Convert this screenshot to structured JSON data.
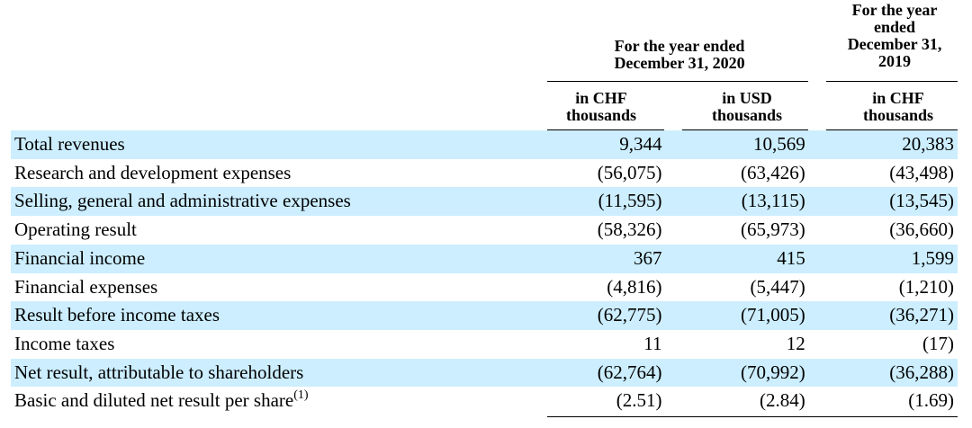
{
  "header": {
    "period_2020": "For the year ended December 31, 2020",
    "period_2020_line1": "For the year ended",
    "period_2020_line2": "December 31, 2020",
    "period_2019_lines": [
      "For the year",
      "ended",
      "December 31,",
      "2019"
    ],
    "columns": [
      {
        "line1": "in CHF",
        "line2": "thousands"
      },
      {
        "line1": "in USD",
        "line2": "thousands"
      },
      {
        "line1": "in CHF",
        "line2": "thousands"
      }
    ]
  },
  "rows": [
    {
      "label": "Total revenues",
      "chf_2020": "9,344",
      "usd_2020": "10,569",
      "chf_2019": "20,383",
      "shaded": true
    },
    {
      "label": "Research and development expenses",
      "chf_2020": "(56,075)",
      "usd_2020": "(63,426)",
      "chf_2019": "(43,498)",
      "shaded": false
    },
    {
      "label": "Selling, general and administrative expenses",
      "chf_2020": "(11,595)",
      "usd_2020": "(13,115)",
      "chf_2019": "(13,545)",
      "shaded": true
    },
    {
      "label": "Operating result",
      "chf_2020": "(58,326)",
      "usd_2020": "(65,973)",
      "chf_2019": "(36,660)",
      "shaded": false
    },
    {
      "label": "Financial income",
      "chf_2020": "367",
      "usd_2020": "415",
      "chf_2019": "1,599",
      "shaded": true
    },
    {
      "label": "Financial expenses",
      "chf_2020": "(4,816)",
      "usd_2020": "(5,447)",
      "chf_2019": "(1,210)",
      "shaded": false
    },
    {
      "label": "Result before income taxes",
      "chf_2020": "(62,775)",
      "usd_2020": "(71,005)",
      "chf_2019": "(36,271)",
      "shaded": true
    },
    {
      "label": "Income taxes",
      "chf_2020": "11",
      "usd_2020": "12",
      "chf_2019": "(17)",
      "shaded": false
    },
    {
      "label": "Net result, attributable to shareholders",
      "chf_2020": "(62,764)",
      "usd_2020": "(70,992)",
      "chf_2019": "(36,288)",
      "shaded": true
    },
    {
      "label": "Basic and diluted net result per share",
      "footnote": "(1)",
      "chf_2020": "(2.51)",
      "usd_2020": "(2.84)",
      "chf_2019": "(1.69)",
      "shaded": false
    }
  ],
  "colors": {
    "shade": "#cceeff",
    "text": "#000000"
  }
}
